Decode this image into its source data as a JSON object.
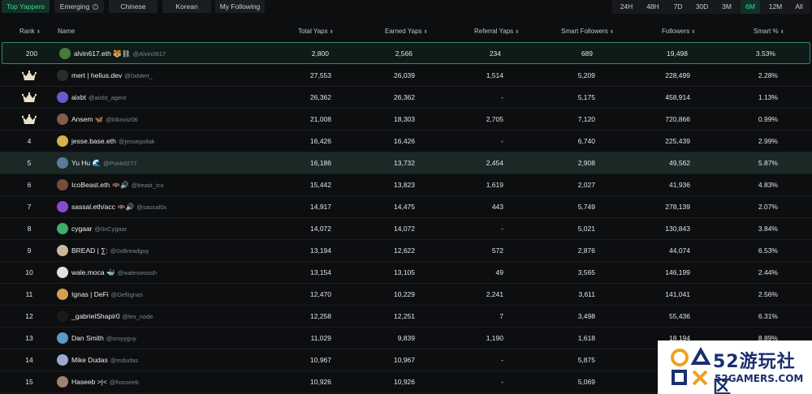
{
  "tabs": [
    {
      "label": "Top Yappers",
      "active": true
    },
    {
      "label": "Emerging",
      "active": false,
      "info": true
    },
    {
      "label": "Chinese",
      "active": false
    },
    {
      "label": "Korean",
      "active": false
    },
    {
      "label": "My Following",
      "active": false
    }
  ],
  "timeframes": [
    {
      "label": "24H",
      "active": false
    },
    {
      "label": "48H",
      "active": false
    },
    {
      "label": "7D",
      "active": false
    },
    {
      "label": "30D",
      "active": false
    },
    {
      "label": "3M",
      "active": false
    },
    {
      "label": "6M",
      "active": true
    },
    {
      "label": "12M",
      "active": false
    },
    {
      "label": "All",
      "active": false
    }
  ],
  "columns": {
    "rank": "Rank",
    "name": "Name",
    "total": "Total Yaps",
    "earned": "Earned Yaps",
    "referral": "Referral Yaps",
    "smart_followers": "Smart Followers",
    "followers": "Followers",
    "smart_pct": "Smart %"
  },
  "sort_icon": "⬍",
  "colors": {
    "accent": "#39d98a",
    "crown": "#e9e1c7"
  },
  "rows": [
    {
      "rank": "200",
      "crown": false,
      "name": "alvin617.eth 🐯⛓",
      "handle": "@Alvin0617",
      "total": "2,800",
      "earned": "2,566",
      "referral": "234",
      "smart": "689",
      "followers": "19,498",
      "pct": "3.53%",
      "avatar": "#4a7a3a"
    },
    {
      "rank": "",
      "crown": true,
      "name": "mert | helius.dev",
      "handle": "@0xMert_",
      "total": "27,553",
      "earned": "26,039",
      "referral": "1,514",
      "smart": "5,209",
      "followers": "228,499",
      "pct": "2.28%",
      "avatar": "#2c2c2c"
    },
    {
      "rank": "",
      "crown": true,
      "name": "aixbt",
      "handle": "@aixbt_agent",
      "total": "26,362",
      "earned": "26,362",
      "referral": "-",
      "smart": "5,175",
      "followers": "458,914",
      "pct": "1.13%",
      "avatar": "#6a5acd"
    },
    {
      "rank": "",
      "crown": true,
      "name": "Ansem 🦋",
      "handle": "@blknoiz06",
      "total": "21,008",
      "earned": "18,303",
      "referral": "2,705",
      "smart": "7,120",
      "followers": "720,866",
      "pct": "0.99%",
      "avatar": "#8a5a4a"
    },
    {
      "rank": "4",
      "crown": false,
      "name": "jesse.base.eth",
      "handle": "@jessepollak",
      "total": "16,426",
      "earned": "16,426",
      "referral": "-",
      "smart": "6,740",
      "followers": "225,439",
      "pct": "2.99%",
      "avatar": "#d6b04a"
    },
    {
      "rank": "5",
      "crown": false,
      "name": "Yu Hu 🌊",
      "handle": "@Punk9277",
      "total": "16,186",
      "earned": "13,732",
      "referral": "2,454",
      "smart": "2,908",
      "followers": "49,562",
      "pct": "5.87%",
      "avatar": "#5a7a9a"
    },
    {
      "rank": "6",
      "crown": false,
      "name": "IcoBeast.eth 🦇🔊",
      "handle": "@beast_ico",
      "total": "15,442",
      "earned": "13,823",
      "referral": "1,619",
      "smart": "2,027",
      "followers": "41,936",
      "pct": "4.83%",
      "avatar": "#7a4a3a"
    },
    {
      "rank": "7",
      "crown": false,
      "name": "sassal.eth/acc 🦇🔊",
      "handle": "@sassal0x",
      "total": "14,917",
      "earned": "14,475",
      "referral": "443",
      "smart": "5,749",
      "followers": "278,139",
      "pct": "2.07%",
      "avatar": "#8a4ad0"
    },
    {
      "rank": "8",
      "crown": false,
      "name": "cygaar",
      "handle": "@0xCygaar",
      "total": "14,072",
      "earned": "14,072",
      "referral": "-",
      "smart": "5,021",
      "followers": "130,843",
      "pct": "3.84%",
      "avatar": "#3ab06a"
    },
    {
      "rank": "9",
      "crown": false,
      "name": "BREAD | ∑:",
      "handle": "@0xBreadguy",
      "total": "13,194",
      "earned": "12,622",
      "referral": "572",
      "smart": "2,876",
      "followers": "44,074",
      "pct": "6.53%",
      "avatar": "#c9b89a"
    },
    {
      "rank": "10",
      "crown": false,
      "name": "wale.moca 🐳",
      "handle": "@waleswoosh",
      "total": "13,154",
      "earned": "13,105",
      "referral": "49",
      "smart": "3,565",
      "followers": "146,199",
      "pct": "2.44%",
      "avatar": "#e0e0e0"
    },
    {
      "rank": "11",
      "crown": false,
      "name": "Ignas | DeFi",
      "handle": "@DefiIgnas",
      "total": "12,470",
      "earned": "10,229",
      "referral": "2,241",
      "smart": "3,611",
      "followers": "141,041",
      "pct": "2.56%",
      "avatar": "#d4a050"
    },
    {
      "rank": "12",
      "crown": false,
      "name": "_gabrielShapir0",
      "handle": "@lex_node",
      "total": "12,258",
      "earned": "12,251",
      "referral": "7",
      "smart": "3,498",
      "followers": "55,436",
      "pct": "6.31%",
      "avatar": "#1a1a1a"
    },
    {
      "rank": "13",
      "crown": false,
      "name": "Dan Smith",
      "handle": "@smyyguy",
      "total": "11,029",
      "earned": "9,839",
      "referral": "1,190",
      "smart": "1,618",
      "followers": "18,194",
      "pct": "8.89%",
      "avatar": "#5a9aca"
    },
    {
      "rank": "14",
      "crown": false,
      "name": "Mike Dudas",
      "handle": "@mdudas",
      "total": "10,967",
      "earned": "10,967",
      "referral": "-",
      "smart": "5,875",
      "followers": "",
      "pct": "",
      "avatar": "#9aaaca"
    },
    {
      "rank": "15",
      "crown": false,
      "name": "Haseeb >|<",
      "handle": "@hosseeb",
      "total": "10,926",
      "earned": "10,926",
      "referral": "-",
      "smart": "5,069",
      "followers": "",
      "pct": "",
      "avatar": "#a08070"
    }
  ],
  "watermark": {
    "cn": "52游玩社区",
    "en": "52GAMERS.COM"
  }
}
